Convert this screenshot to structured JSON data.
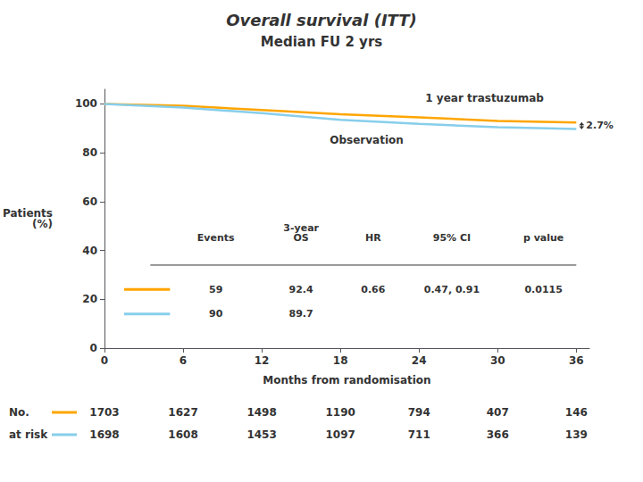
{
  "chart_data": {
    "type": "line",
    "title": "Overall survival (ITT)",
    "subtitle": "Median FU 2 yrs",
    "xlabel": "Months from randomisation",
    "ylabel": "Patients\n(%)",
    "xlim": [
      0,
      37
    ],
    "xticks": [
      0,
      6,
      12,
      18,
      24,
      30,
      36
    ],
    "ylim": [
      0,
      106
    ],
    "yticks": [
      0,
      20,
      40,
      60,
      80,
      100
    ],
    "grid": false,
    "x": [
      0,
      6,
      12,
      18,
      24,
      30,
      36
    ],
    "series": [
      {
        "name": "1 year trastuzumab",
        "color": "#FFA500",
        "values": [
          100,
          99.2,
          97.5,
          95.8,
          94.5,
          93.0,
          92.4
        ],
        "at_risk": [
          1703,
          1627,
          1498,
          1190,
          794,
          407,
          146
        ]
      },
      {
        "name": "Observation",
        "color": "#87CEEB",
        "values": [
          100,
          98.5,
          96.2,
          93.5,
          91.8,
          90.5,
          89.7
        ],
        "at_risk": [
          1698,
          1608,
          1453,
          1097,
          711,
          366,
          139
        ]
      }
    ],
    "difference_label": "2.7%",
    "table": {
      "columns": [
        "Events",
        "3-year\nOS",
        "HR",
        "95% CI",
        "p value"
      ],
      "rows": [
        [
          "59",
          "92.4",
          "0.66",
          "0.47, 0.91",
          "0.0115"
        ],
        [
          "90",
          "89.7"
        ]
      ]
    },
    "at_risk_label": [
      "No.",
      "at risk"
    ]
  }
}
